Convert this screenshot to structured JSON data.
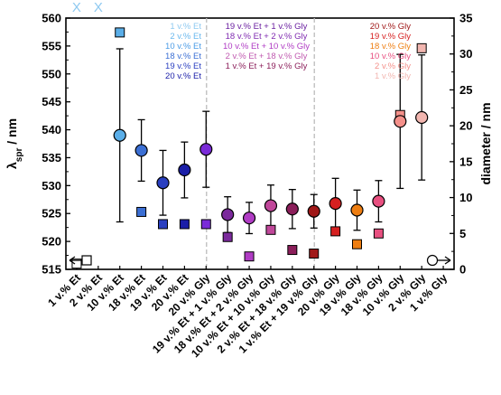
{
  "chart_data": {
    "type": "scatter",
    "left_axis": {
      "label_main": "λ",
      "label_sub": "spr",
      "label_unit": " / nm",
      "range": [
        515,
        560
      ],
      "ticks": [
        "515",
        "520",
        "525",
        "530",
        "535",
        "540",
        "545",
        "550",
        "555",
        "560"
      ]
    },
    "right_axis": {
      "label": "diameter / nm",
      "range": [
        0,
        35
      ],
      "ticks": [
        "0",
        "5",
        "10",
        "15",
        "20",
        "25",
        "30",
        "35"
      ]
    },
    "categories": [
      "1 v.% Et",
      "2 v.% Et",
      "10 v.% Et",
      "18 v.% Et",
      "19 v.% Et",
      "20 v.% Et",
      "20 v.% Gly",
      "19 v.% Et + 1 v.% Gly",
      "18 v.% Et + 2 v.% Gly",
      "10 v.% Et + 10 v.% Gly",
      "2 v.% Et + 18 v.% Gly",
      "1 v.% Et + 19 v.% Gly",
      "20 v.% Gly",
      "19 v.% Gly",
      "18 v.% Gly",
      "10 v.% Gly",
      "2 v.% Gly",
      "1 v.% Gly"
    ],
    "lambda_spr_series": {
      "marker": "circle",
      "points": [
        {
          "cat": 2,
          "value": 539.0,
          "err": 15.5,
          "color": "#5aaee8"
        },
        {
          "cat": 3,
          "value": 536.3,
          "err": 5.5,
          "color": "#3b6fd4"
        },
        {
          "cat": 4,
          "value": 530.5,
          "err": 5.8,
          "color": "#2a3fc0"
        },
        {
          "cat": 5,
          "value": 532.8,
          "err": 5.0,
          "color": "#1a1ea8"
        },
        {
          "cat": 6,
          "value": 536.5,
          "err": 6.8,
          "color": "#7a2bd8"
        },
        {
          "cat": 7,
          "value": 524.8,
          "err": 3.2,
          "color": "#7b2a9c"
        },
        {
          "cat": 8,
          "value": 524.2,
          "err": 2.8,
          "color": "#b03cc4"
        },
        {
          "cat": 9,
          "value": 526.4,
          "err": 3.7,
          "color": "#c0479a"
        },
        {
          "cat": 10,
          "value": 525.8,
          "err": 3.5,
          "color": "#8b1e5a"
        },
        {
          "cat": 11,
          "value": 525.4,
          "err": 3.0,
          "color": "#a01818"
        },
        {
          "cat": 12,
          "value": 526.8,
          "err": 4.5,
          "color": "#d62020"
        },
        {
          "cat": 13,
          "value": 525.6,
          "err": 3.6,
          "color": "#ee7e12"
        },
        {
          "cat": 14,
          "value": 527.2,
          "err": 3.7,
          "color": "#e85080"
        },
        {
          "cat": 15,
          "value": 541.5,
          "err": 12.0,
          "color": "#f4908a"
        },
        {
          "cat": 16,
          "value": 542.2,
          "err": 11.2,
          "color": "#f2b6b0"
        }
      ]
    },
    "diameter_series": {
      "marker": "square",
      "points": [
        {
          "cat": 0,
          "value": 0.8,
          "color": "#ffffff"
        },
        {
          "cat": 2,
          "value": 33.0,
          "color": "#5aaee8"
        },
        {
          "cat": 3,
          "value": 8.0,
          "color": "#3b6fd4"
        },
        {
          "cat": 4,
          "value": 6.3,
          "color": "#2a3fc0"
        },
        {
          "cat": 5,
          "value": 6.3,
          "color": "#1a1ea8"
        },
        {
          "cat": 6,
          "value": 6.3,
          "color": "#7a2bd8"
        },
        {
          "cat": 7,
          "value": 4.5,
          "color": "#7b2a9c"
        },
        {
          "cat": 8,
          "value": 1.8,
          "color": "#b03cc4"
        },
        {
          "cat": 9,
          "value": 5.5,
          "color": "#c0479a"
        },
        {
          "cat": 10,
          "value": 2.7,
          "color": "#8b1e5a"
        },
        {
          "cat": 11,
          "value": 2.2,
          "color": "#a01818"
        },
        {
          "cat": 12,
          "value": 5.3,
          "color": "#d62020"
        },
        {
          "cat": 13,
          "value": 3.5,
          "color": "#ee7e12"
        },
        {
          "cat": 14,
          "value": 5.0,
          "color": "#e85080"
        },
        {
          "cat": 15,
          "value": 21.5,
          "color": "#f4908a"
        },
        {
          "cat": 16,
          "value": 30.8,
          "color": "#f2b6b0"
        }
      ]
    },
    "missing_markers": [
      {
        "cat": 0,
        "text": "X",
        "color": "#8ec9f0"
      },
      {
        "cat": 1,
        "text": "X",
        "color": "#8ec9f0"
      }
    ],
    "legends": [
      {
        "items": [
          {
            "text": "1 v.% Et",
            "color": "#8ec9f0"
          },
          {
            "text": "2 v.% Et",
            "color": "#6ab8ee"
          },
          {
            "text": "10 v.% Et",
            "color": "#4a9be6"
          },
          {
            "text": "18 v.% Et",
            "color": "#3b6fd4"
          },
          {
            "text": "19 v.% Et",
            "color": "#2a3fc0"
          },
          {
            "text": "20 v.% Et",
            "color": "#1a1ea8"
          }
        ]
      },
      {
        "items": [
          {
            "text": "19 v.% Et +   1 v.% Gly",
            "color": "#6a1fa0"
          },
          {
            "text": "18 v.% Et +   2 v.% Gly",
            "color": "#7f2ab0"
          },
          {
            "text": "10 v.% Et + 10 v.% Gly",
            "color": "#b03cc4"
          },
          {
            "text": "2 v.% Et + 18 v.% Gly",
            "color": "#c05ab0"
          },
          {
            "text": "1 v.% Et + 19 v.% Gly",
            "color": "#8b1e5a"
          }
        ]
      },
      {
        "items": [
          {
            "text": "20 v.% Gly",
            "color": "#a01818"
          },
          {
            "text": "19 v.% Gly",
            "color": "#d62020"
          },
          {
            "text": "18 v.% Gly",
            "color": "#ee7e12"
          },
          {
            "text": "10 v.% Gly",
            "color": "#e85080"
          },
          {
            "text": "2 v.% Gly",
            "color": "#f4908a"
          },
          {
            "text": "1 v.% Gly",
            "color": "#f2b6b0"
          }
        ]
      }
    ],
    "dividers_after_category": [
      6,
      11
    ],
    "grid": false
  }
}
